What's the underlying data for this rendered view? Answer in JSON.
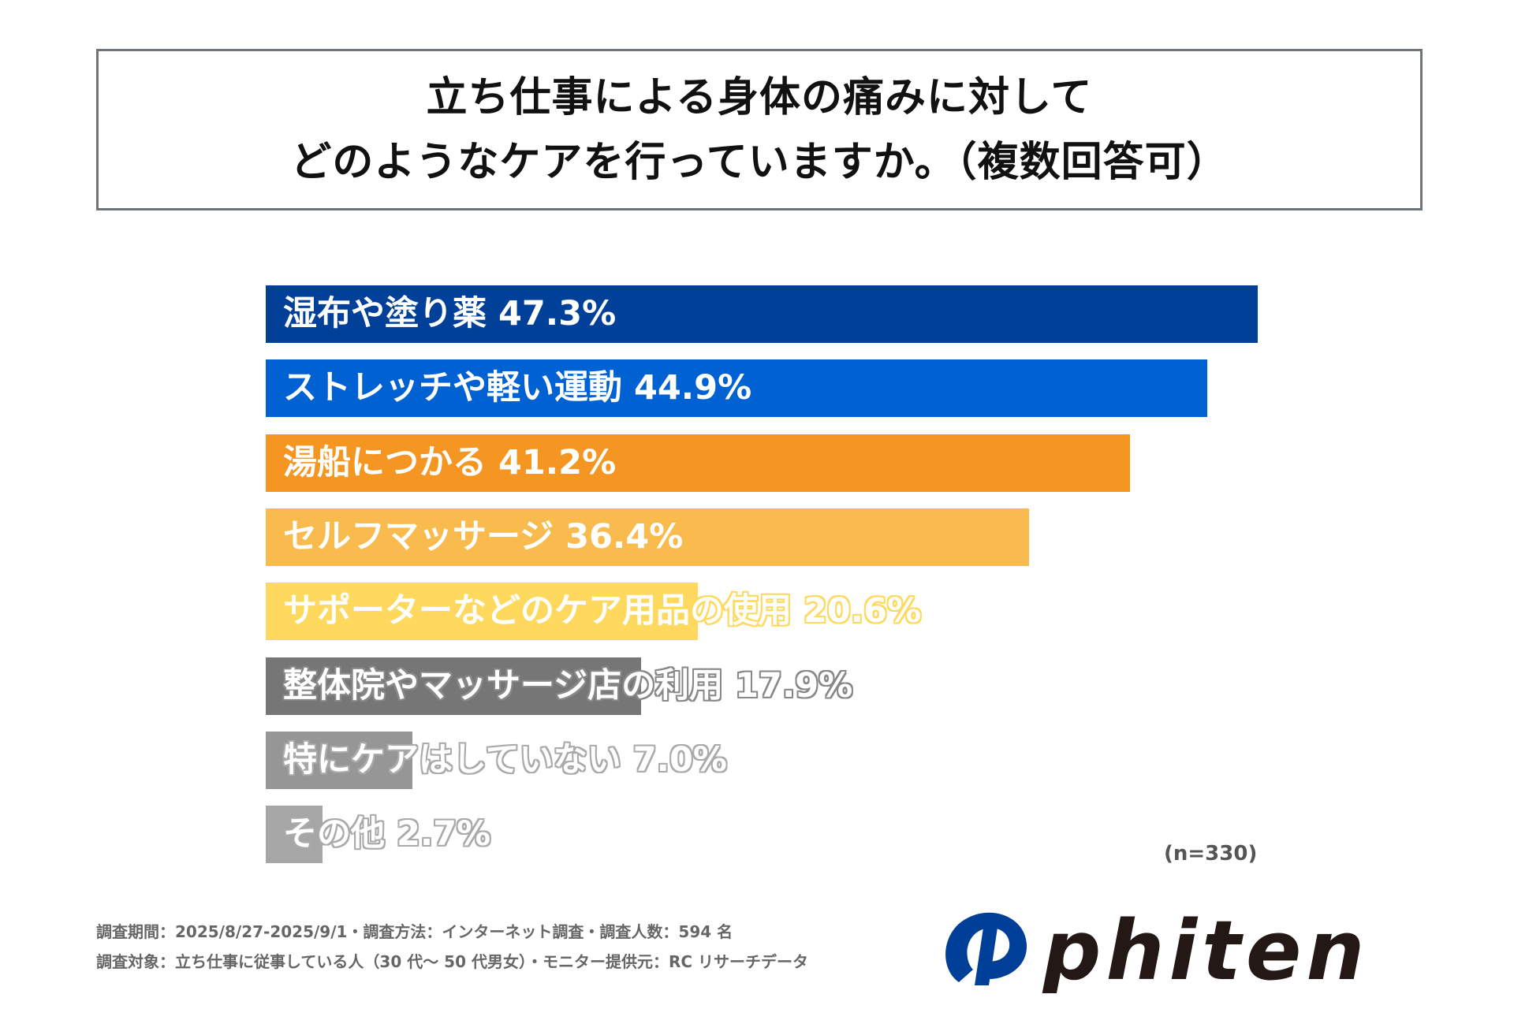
{
  "title": {
    "line1": "立ち仕事による身体の痛みに対して",
    "line2": "どのようなケアを行っていますか。（複数回答可）"
  },
  "chart_data": {
    "type": "bar",
    "orientation": "horizontal",
    "categories": [
      "湿布や塗り薬",
      "ストレッチや軽い運動",
      "湯船につかる",
      "セルフマッサージ",
      "サポーターなどのケア用品の使用",
      "整体院やマッサージ店の利用",
      "特にケアはしていない",
      "その他"
    ],
    "values": [
      47.3,
      44.9,
      41.2,
      36.4,
      20.6,
      17.9,
      7.0,
      2.7
    ],
    "value_labels": [
      "47.3%",
      "44.9%",
      "41.2%",
      "36.4%",
      "20.6%",
      "17.9%",
      "7.0%",
      "2.7%"
    ],
    "colors": [
      "#004098",
      "#0062d2",
      "#f59622",
      "#f9bb4e",
      "#ffd95e",
      "#767676",
      "#969696",
      "#a6a6a6"
    ],
    "xlim": [
      0,
      47.3
    ],
    "note": "(n=330)"
  },
  "footer": {
    "line1": "調査期間：2025/8/27-2025/9/1・調査方法：インターネット調査・調査人数：594 名",
    "line2": "調査対象：立ち仕事に従事している人（30 代～ 50 代男女）・モニター提供元：RC リサーチデータ"
  },
  "logo": {
    "text": "phiten",
    "mark_color": "#003f98",
    "text_color": "#231815"
  }
}
